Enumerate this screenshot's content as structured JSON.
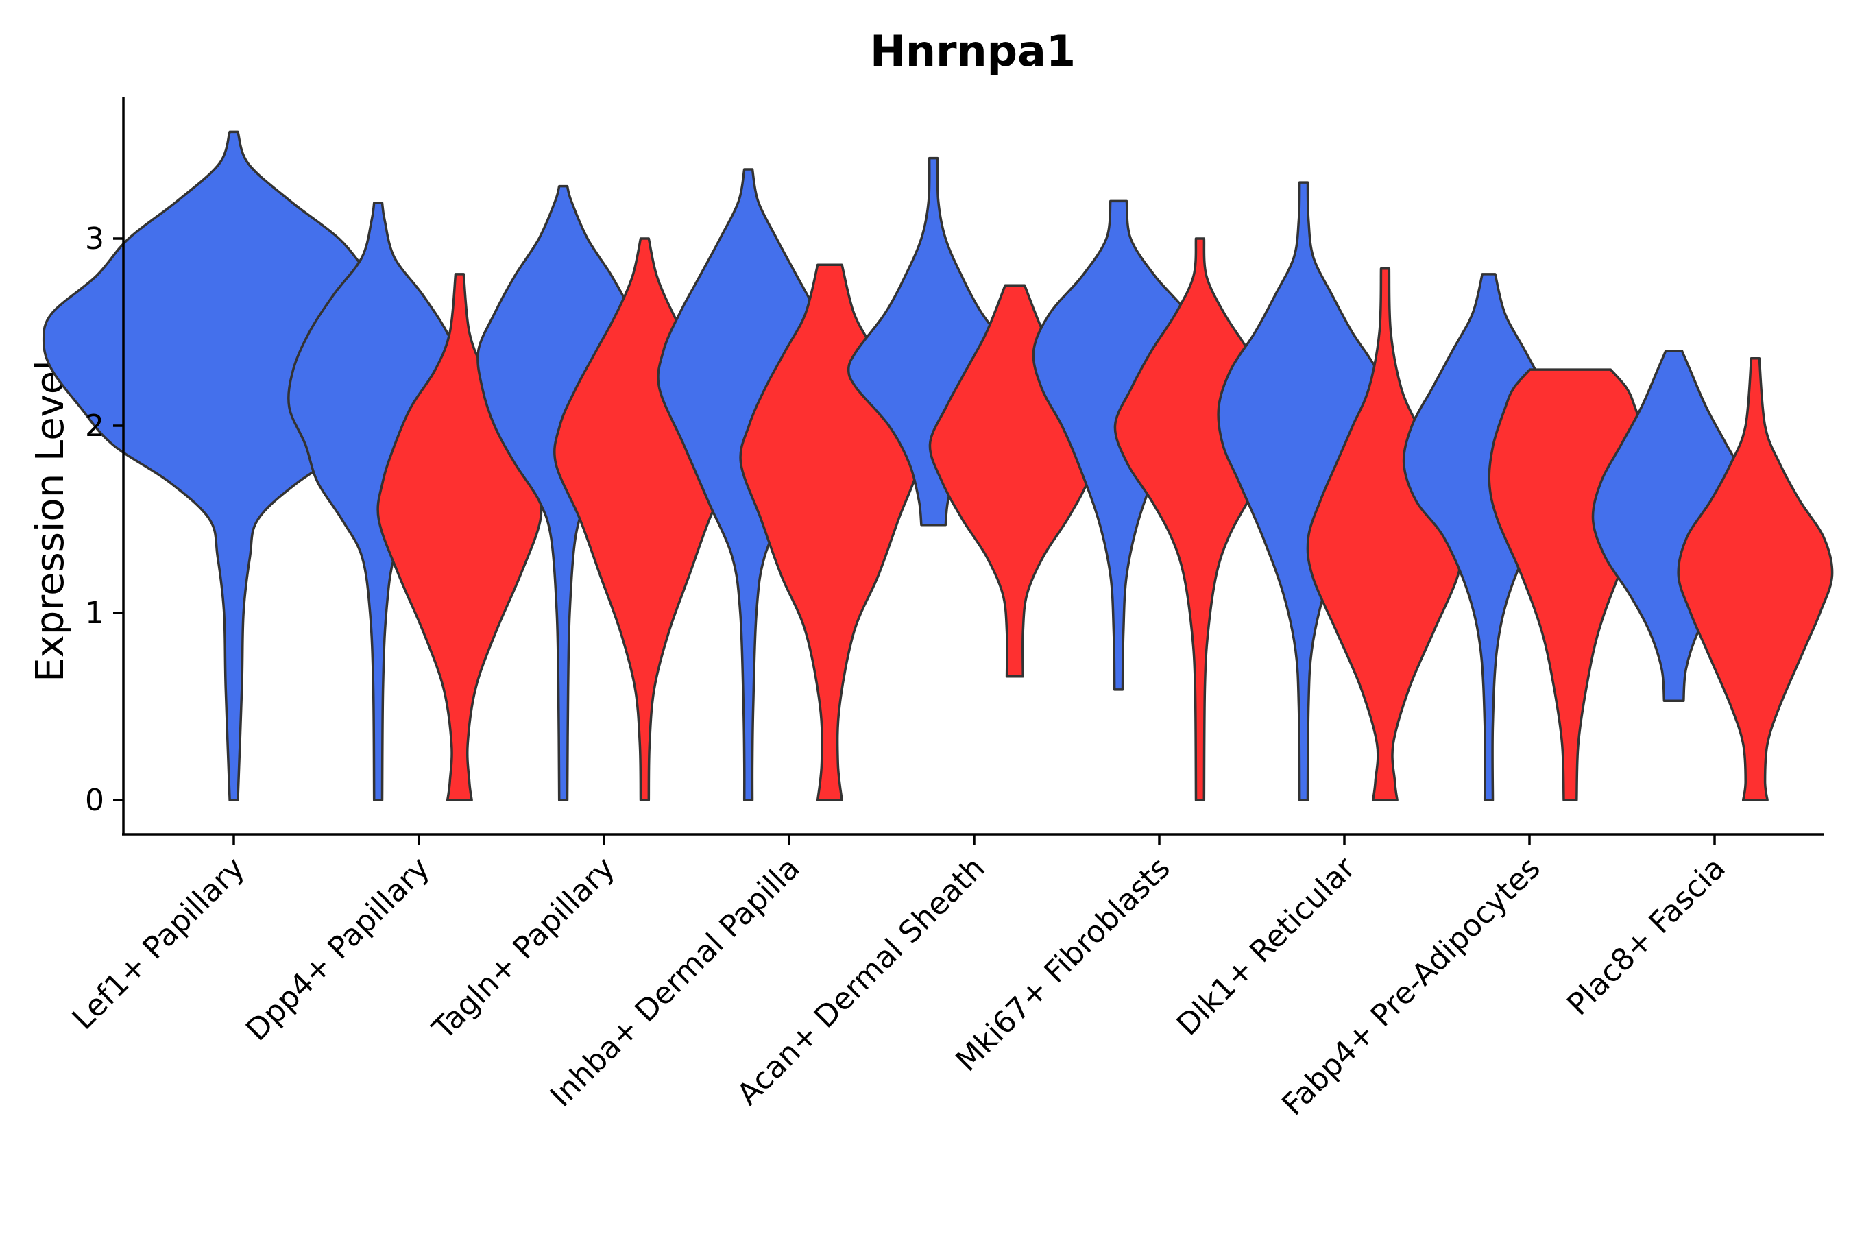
{
  "chart_data": {
    "type": "violin",
    "title": "Hnrnpa1",
    "xlabel": "",
    "ylabel": "Expression Level",
    "ylim": [
      -0.18,
      3.75
    ],
    "yticks": [
      0,
      1,
      2,
      3
    ],
    "grid": false,
    "legend": "none",
    "colors": {
      "group1": "#4470ec",
      "group2": "#fe3030",
      "outline": "#333333"
    },
    "categories": [
      "Lef1+ Papillary",
      "Dpp4+ Papillary",
      "Tagln+ Papillary",
      "Inhba+ Dermal Papilla",
      "Acan+ Dermal Sheath",
      "Mki67+ Fibroblasts",
      "Dlk1+ Reticular",
      "Fabp4+ Pre-Adipocytes",
      "Plac8+ Fascia"
    ],
    "violins": [
      {
        "category": "Lef1+ Papillary",
        "group": "group1",
        "offset": 0,
        "profile": [
          [
            0,
            0.05
          ],
          [
            0.6,
            0.1
          ],
          [
            1.0,
            0.12
          ],
          [
            1.3,
            0.2
          ],
          [
            1.5,
            0.3
          ],
          [
            1.7,
            0.8
          ],
          [
            1.9,
            1.5
          ],
          [
            2.1,
            1.9
          ],
          [
            2.3,
            2.25
          ],
          [
            2.45,
            2.35
          ],
          [
            2.6,
            2.25
          ],
          [
            2.8,
            1.7
          ],
          [
            3.0,
            1.3
          ],
          [
            3.2,
            0.7
          ],
          [
            3.4,
            0.18
          ],
          [
            3.57,
            0.05
          ]
        ]
      },
      {
        "category": "Dpp4+ Papillary",
        "group": "group1",
        "offset": -0.22,
        "profile": [
          [
            0,
            0.05
          ],
          [
            0.6,
            0.06
          ],
          [
            1.0,
            0.1
          ],
          [
            1.3,
            0.2
          ],
          [
            1.5,
            0.45
          ],
          [
            1.7,
            0.75
          ],
          [
            1.9,
            0.9
          ],
          [
            2.1,
            1.1
          ],
          [
            2.3,
            1.05
          ],
          [
            2.5,
            0.85
          ],
          [
            2.7,
            0.55
          ],
          [
            2.9,
            0.2
          ],
          [
            3.1,
            0.08
          ],
          [
            3.19,
            0.05
          ]
        ]
      },
      {
        "category": "Dpp4+ Papillary",
        "group": "group2",
        "offset": 0.22,
        "profile": [
          [
            0,
            0.15
          ],
          [
            0.1,
            0.12
          ],
          [
            0.3,
            0.1
          ],
          [
            0.6,
            0.2
          ],
          [
            0.9,
            0.45
          ],
          [
            1.2,
            0.75
          ],
          [
            1.5,
            1.0
          ],
          [
            1.7,
            0.95
          ],
          [
            1.9,
            0.8
          ],
          [
            2.1,
            0.6
          ],
          [
            2.3,
            0.3
          ],
          [
            2.5,
            0.12
          ],
          [
            2.81,
            0.05
          ]
        ]
      },
      {
        "category": "Tagln+ Papillary",
        "group": "group1",
        "offset": -0.22,
        "profile": [
          [
            0,
            0.05
          ],
          [
            0.6,
            0.06
          ],
          [
            1.0,
            0.08
          ],
          [
            1.4,
            0.15
          ],
          [
            1.6,
            0.3
          ],
          [
            1.8,
            0.6
          ],
          [
            2.0,
            0.85
          ],
          [
            2.2,
            1.0
          ],
          [
            2.4,
            1.05
          ],
          [
            2.6,
            0.85
          ],
          [
            2.8,
            0.6
          ],
          [
            3.0,
            0.3
          ],
          [
            3.2,
            0.1
          ],
          [
            3.28,
            0.05
          ]
        ]
      },
      {
        "category": "Tagln+ Papillary",
        "group": "group2",
        "offset": 0.22,
        "profile": [
          [
            0,
            0.05
          ],
          [
            0.3,
            0.06
          ],
          [
            0.6,
            0.12
          ],
          [
            0.9,
            0.3
          ],
          [
            1.2,
            0.55
          ],
          [
            1.5,
            0.8
          ],
          [
            1.8,
            1.1
          ],
          [
            2.0,
            1.05
          ],
          [
            2.2,
            0.85
          ],
          [
            2.4,
            0.6
          ],
          [
            2.6,
            0.35
          ],
          [
            2.8,
            0.15
          ],
          [
            3.0,
            0.05
          ]
        ]
      },
      {
        "category": "Inhba+ Dermal Papilla",
        "group": "group1",
        "offset": -0.22,
        "profile": [
          [
            0,
            0.05
          ],
          [
            0.2,
            0.05
          ],
          [
            0.5,
            0.06
          ],
          [
            1.0,
            0.1
          ],
          [
            1.3,
            0.2
          ],
          [
            1.6,
            0.5
          ],
          [
            1.9,
            0.8
          ],
          [
            2.2,
            1.1
          ],
          [
            2.4,
            1.05
          ],
          [
            2.6,
            0.85
          ],
          [
            2.8,
            0.6
          ],
          [
            3.0,
            0.35
          ],
          [
            3.2,
            0.12
          ],
          [
            3.37,
            0.05
          ]
        ]
      },
      {
        "category": "Inhba+ Dermal Papilla",
        "group": "group2",
        "offset": 0.22,
        "profile": [
          [
            0,
            0.15
          ],
          [
            0.2,
            0.1
          ],
          [
            0.5,
            0.12
          ],
          [
            0.9,
            0.3
          ],
          [
            1.2,
            0.6
          ],
          [
            1.5,
            0.85
          ],
          [
            1.8,
            1.1
          ],
          [
            2.0,
            1.0
          ],
          [
            2.2,
            0.8
          ],
          [
            2.4,
            0.55
          ],
          [
            2.6,
            0.3
          ],
          [
            2.86,
            0.15
          ]
        ]
      },
      {
        "category": "Acan+ Dermal Sheath",
        "group": "group1",
        "offset": -0.22,
        "profile": [
          [
            1.47,
            0.15
          ],
          [
            1.6,
            0.18
          ],
          [
            1.8,
            0.3
          ],
          [
            2.0,
            0.55
          ],
          [
            2.2,
            0.95
          ],
          [
            2.3,
            1.05
          ],
          [
            2.4,
            0.95
          ],
          [
            2.6,
            0.6
          ],
          [
            2.8,
            0.35
          ],
          [
            3.0,
            0.15
          ],
          [
            3.2,
            0.06
          ],
          [
            3.43,
            0.05
          ]
        ]
      },
      {
        "category": "Acan+ Dermal Sheath",
        "group": "group2",
        "offset": 0.22,
        "profile": [
          [
            0.66,
            0.1
          ],
          [
            0.9,
            0.1
          ],
          [
            1.1,
            0.15
          ],
          [
            1.3,
            0.35
          ],
          [
            1.5,
            0.65
          ],
          [
            1.7,
            0.9
          ],
          [
            1.9,
            1.05
          ],
          [
            2.1,
            0.85
          ],
          [
            2.3,
            0.6
          ],
          [
            2.5,
            0.35
          ],
          [
            2.75,
            0.12
          ]
        ]
      },
      {
        "category": "Mki67+ Fibroblasts",
        "group": "group1",
        "offset": -0.22,
        "profile": [
          [
            0.59,
            0.05
          ],
          [
            0.9,
            0.06
          ],
          [
            1.2,
            0.1
          ],
          [
            1.5,
            0.25
          ],
          [
            1.8,
            0.5
          ],
          [
            2.0,
            0.7
          ],
          [
            2.2,
            0.95
          ],
          [
            2.4,
            1.05
          ],
          [
            2.6,
            0.85
          ],
          [
            2.8,
            0.45
          ],
          [
            3.0,
            0.15
          ],
          [
            3.2,
            0.1
          ]
        ]
      },
      {
        "category": "Mki67+ Fibroblasts",
        "group": "group2",
        "offset": 0.22,
        "profile": [
          [
            0,
            0.05
          ],
          [
            0.6,
            0.06
          ],
          [
            0.9,
            0.1
          ],
          [
            1.2,
            0.2
          ],
          [
            1.4,
            0.35
          ],
          [
            1.6,
            0.6
          ],
          [
            1.8,
            0.9
          ],
          [
            2.0,
            1.05
          ],
          [
            2.2,
            0.85
          ],
          [
            2.4,
            0.6
          ],
          [
            2.6,
            0.3
          ],
          [
            2.8,
            0.08
          ],
          [
            3.0,
            0.05
          ]
        ]
      },
      {
        "category": "Dlk1+ Reticular",
        "group": "group1",
        "offset": -0.22,
        "profile": [
          [
            0,
            0.05
          ],
          [
            0.5,
            0.06
          ],
          [
            0.8,
            0.1
          ],
          [
            1.1,
            0.25
          ],
          [
            1.4,
            0.5
          ],
          [
            1.7,
            0.8
          ],
          [
            1.9,
            1.0
          ],
          [
            2.1,
            1.05
          ],
          [
            2.3,
            0.9
          ],
          [
            2.5,
            0.6
          ],
          [
            2.7,
            0.35
          ],
          [
            2.9,
            0.12
          ],
          [
            3.1,
            0.06
          ],
          [
            3.3,
            0.05
          ]
        ]
      },
      {
        "category": "Dlk1+ Reticular",
        "group": "group2",
        "offset": 0.22,
        "profile": [
          [
            0,
            0.15
          ],
          [
            0.1,
            0.12
          ],
          [
            0.3,
            0.1
          ],
          [
            0.6,
            0.3
          ],
          [
            0.9,
            0.6
          ],
          [
            1.2,
            0.9
          ],
          [
            1.4,
            0.95
          ],
          [
            1.6,
            0.8
          ],
          [
            1.8,
            0.6
          ],
          [
            2.0,
            0.4
          ],
          [
            2.2,
            0.2
          ],
          [
            2.5,
            0.07
          ],
          [
            2.84,
            0.05
          ]
        ]
      },
      {
        "category": "Fabp4+ Pre-Adipocytes",
        "group": "group1",
        "offset": -0.22,
        "profile": [
          [
            0,
            0.05
          ],
          [
            0.4,
            0.05
          ],
          [
            0.8,
            0.1
          ],
          [
            1.1,
            0.25
          ],
          [
            1.4,
            0.55
          ],
          [
            1.6,
            0.9
          ],
          [
            1.8,
            1.05
          ],
          [
            2.0,
            0.95
          ],
          [
            2.2,
            0.7
          ],
          [
            2.4,
            0.45
          ],
          [
            2.6,
            0.2
          ],
          [
            2.81,
            0.08
          ]
        ]
      },
      {
        "category": "Fabp4+ Pre-Adipocytes",
        "group": "group2",
        "offset": 0.22,
        "profile": [
          [
            0,
            0.08
          ],
          [
            0.3,
            0.1
          ],
          [
            0.6,
            0.2
          ],
          [
            0.9,
            0.35
          ],
          [
            1.2,
            0.6
          ],
          [
            1.5,
            0.9
          ],
          [
            1.7,
            1.0
          ],
          [
            1.9,
            0.95
          ],
          [
            2.1,
            0.8
          ],
          [
            2.2,
            0.7
          ],
          [
            2.3,
            0.5
          ]
        ]
      },
      {
        "category": "Plac8+ Fascia",
        "group": "group1",
        "offset": -0.22,
        "profile": [
          [
            0.53,
            0.12
          ],
          [
            0.7,
            0.15
          ],
          [
            0.9,
            0.3
          ],
          [
            1.1,
            0.55
          ],
          [
            1.3,
            0.85
          ],
          [
            1.5,
            1.0
          ],
          [
            1.7,
            0.9
          ],
          [
            1.9,
            0.65
          ],
          [
            2.1,
            0.4
          ],
          [
            2.3,
            0.2
          ],
          [
            2.4,
            0.1
          ]
        ]
      },
      {
        "category": "Plac8+ Fascia",
        "group": "group2",
        "offset": 0.22,
        "profile": [
          [
            0,
            0.15
          ],
          [
            0.1,
            0.12
          ],
          [
            0.3,
            0.15
          ],
          [
            0.5,
            0.3
          ],
          [
            0.8,
            0.6
          ],
          [
            1.0,
            0.8
          ],
          [
            1.2,
            0.95
          ],
          [
            1.4,
            0.85
          ],
          [
            1.6,
            0.55
          ],
          [
            1.8,
            0.3
          ],
          [
            2.0,
            0.12
          ],
          [
            2.36,
            0.05
          ]
        ]
      }
    ]
  }
}
